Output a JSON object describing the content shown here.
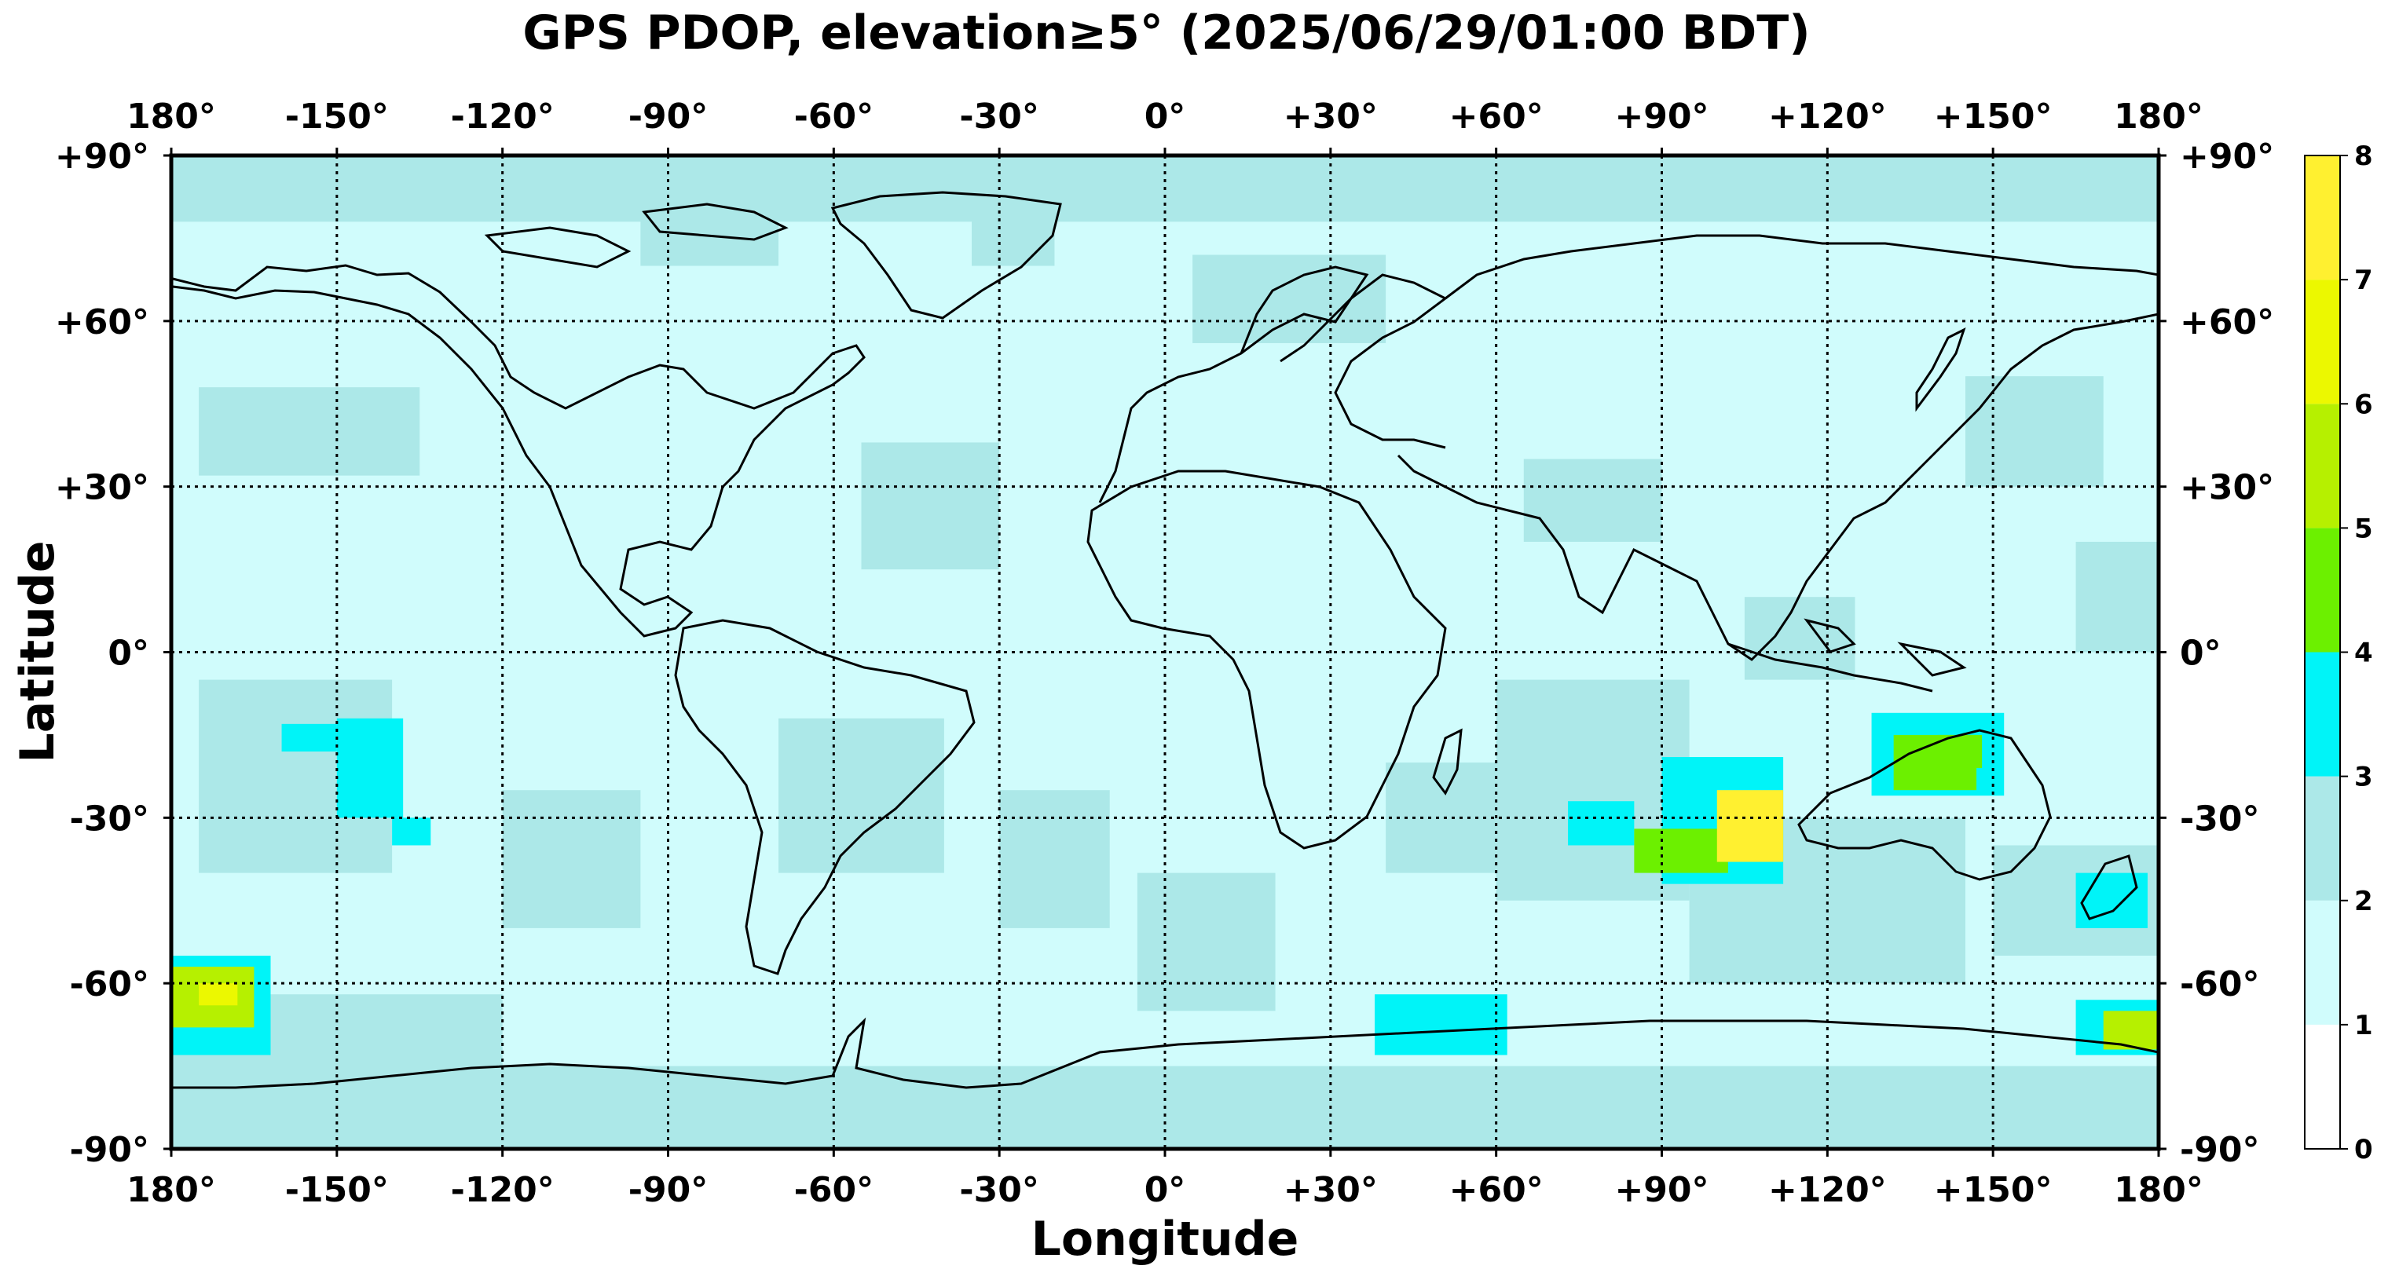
{
  "title": "GPS PDOP, elevation≥5° (2025/06/29/01:00 BDT)",
  "axes": {
    "xlabel": "Longitude",
    "ylabel": "Latitude",
    "lon_ticks": [
      "180°",
      "-150°",
      "-120°",
      "-90°",
      "-60°",
      "-30°",
      "0°",
      "+30°",
      "+60°",
      "+90°",
      "+120°",
      "+150°",
      "180°"
    ],
    "lat_ticks": [
      "+90°",
      "+60°",
      "+30°",
      "0°",
      "-30°",
      "-60°",
      "-90°"
    ],
    "lon_range": [
      -180,
      180
    ],
    "lat_range": [
      -90,
      90
    ],
    "grid": "dotted"
  },
  "colorbar": {
    "ticks": [
      "8",
      "7",
      "6",
      "5",
      "4",
      "3",
      "2",
      "1",
      "0"
    ],
    "bins": [
      {
        "range": [
          0,
          1
        ],
        "color": "#ffffff"
      },
      {
        "range": [
          1,
          2
        ],
        "color": "#d0fcfc"
      },
      {
        "range": [
          2,
          3
        ],
        "color": "#ace8e8"
      },
      {
        "range": [
          3,
          4
        ],
        "color": "#00f4f8"
      },
      {
        "range": [
          4,
          5
        ],
        "color": "#6cf000"
      },
      {
        "range": [
          5,
          6
        ],
        "color": "#b6f000"
      },
      {
        "range": [
          6,
          7
        ],
        "color": "#ecf800"
      },
      {
        "range": [
          7,
          8
        ],
        "color": "#fff030"
      }
    ]
  },
  "chart_data": {
    "type": "heatmap",
    "metric": "GPS PDOP",
    "background_value": 1.6,
    "regions": [
      {
        "lon": [
          -180,
          180
        ],
        "lat": [
          78,
          90
        ],
        "value": 2.2
      },
      {
        "lon": [
          -180,
          180
        ],
        "lat": [
          -90,
          -75
        ],
        "value": 2.2
      },
      {
        "lon": [
          -180,
          -120
        ],
        "lat": [
          -62,
          -90
        ],
        "value": 2.3
      },
      {
        "lon": [
          -70,
          -40
        ],
        "lat": [
          -12,
          -40
        ],
        "value": 2.2
      },
      {
        "lon": [
          -175,
          -135
        ],
        "lat": [
          48,
          32
        ],
        "value": 2.2
      },
      {
        "lon": [
          -55,
          -30
        ],
        "lat": [
          38,
          15
        ],
        "value": 2.2
      },
      {
        "lon": [
          -95,
          -70
        ],
        "lat": [
          88,
          70
        ],
        "value": 2.2
      },
      {
        "lon": [
          -35,
          -20
        ],
        "lat": [
          80,
          70
        ],
        "value": 2.2
      },
      {
        "lon": [
          5,
          40
        ],
        "lat": [
          72,
          56
        ],
        "value": 2.2
      },
      {
        "lon": [
          65,
          90
        ],
        "lat": [
          35,
          20
        ],
        "value": 2.2
      },
      {
        "lon": [
          105,
          125
        ],
        "lat": [
          10,
          -5
        ],
        "value": 2.2
      },
      {
        "lon": [
          145,
          170
        ],
        "lat": [
          50,
          30
        ],
        "value": 2.2
      },
      {
        "lon": [
          165,
          180
        ],
        "lat": [
          20,
          0
        ],
        "value": 2.2
      },
      {
        "lon": [
          -175,
          -140
        ],
        "lat": [
          -5,
          -40
        ],
        "value": 2.3
      },
      {
        "lon": [
          -120,
          -95
        ],
        "lat": [
          -25,
          -50
        ],
        "value": 2.2
      },
      {
        "lon": [
          -30,
          -10
        ],
        "lat": [
          -25,
          -50
        ],
        "value": 2.2
      },
      {
        "lon": [
          -5,
          20
        ],
        "lat": [
          -40,
          -65
        ],
        "value": 2.2
      },
      {
        "lon": [
          40,
          60
        ],
        "lat": [
          -20,
          -40
        ],
        "value": 2.2
      },
      {
        "lon": [
          60,
          95
        ],
        "lat": [
          -5,
          -45
        ],
        "value": 2.3
      },
      {
        "lon": [
          95,
          145
        ],
        "lat": [
          -30,
          -60
        ],
        "value": 2.2
      },
      {
        "lon": [
          150,
          180
        ],
        "lat": [
          -35,
          -55
        ],
        "value": 2.2
      },
      {
        "lon": [
          -160,
          -150
        ],
        "lat": [
          -13,
          -18
        ],
        "value": 3.5
      },
      {
        "lon": [
          -150,
          -138
        ],
        "lat": [
          -12,
          -30
        ],
        "value": 3.5
      },
      {
        "lon": [
          -140,
          -133
        ],
        "lat": [
          -30,
          -35
        ],
        "value": 3.5
      },
      {
        "lon": [
          -180,
          -162
        ],
        "lat": [
          -55,
          -73
        ],
        "value": 3.5
      },
      {
        "lon": [
          -180,
          -165
        ],
        "lat": [
          -57,
          -68
        ],
        "value": 5.6
      },
      {
        "lon": [
          -175,
          -168
        ],
        "lat": [
          -60,
          -64
        ],
        "value": 6.3
      },
      {
        "lon": [
          73,
          85
        ],
        "lat": [
          -27,
          -35
        ],
        "value": 3.5
      },
      {
        "lon": [
          90,
          112
        ],
        "lat": [
          -19,
          -42
        ],
        "value": 3.5
      },
      {
        "lon": [
          85,
          102
        ],
        "lat": [
          -32,
          -40
        ],
        "value": 4.6
      },
      {
        "lon": [
          100,
          112
        ],
        "lat": [
          -25,
          -38
        ],
        "value": 7.6
      },
      {
        "lon": [
          128,
          152
        ],
        "lat": [
          -11,
          -26
        ],
        "value": 3.5
      },
      {
        "lon": [
          132,
          147
        ],
        "lat": [
          -15,
          -25
        ],
        "value": 4.5
      },
      {
        "lon": [
          140,
          148
        ],
        "lat": [
          -15,
          -21
        ],
        "value": 4.8
      },
      {
        "lon": [
          165,
          178
        ],
        "lat": [
          -40,
          -50
        ],
        "value": 3.5
      },
      {
        "lon": [
          38,
          62
        ],
        "lat": [
          -62,
          -73
        ],
        "value": 3.5
      },
      {
        "lon": [
          165,
          180
        ],
        "lat": [
          -63,
          -73
        ],
        "value": 3.5
      },
      {
        "lon": [
          170,
          180
        ],
        "lat": [
          -65,
          -72
        ],
        "value": 5.6
      }
    ]
  }
}
